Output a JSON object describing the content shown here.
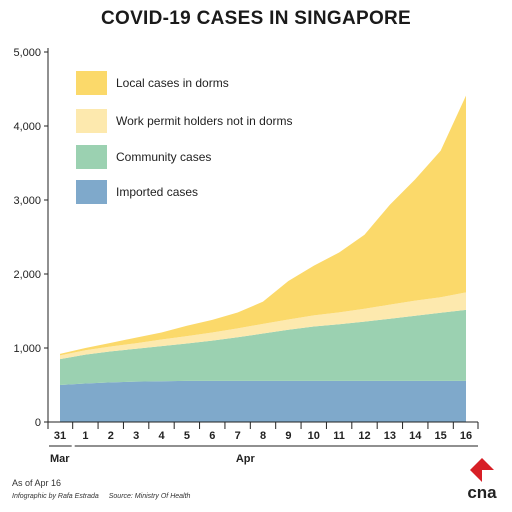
{
  "chart_data": {
    "type": "area",
    "title": "COVID-19 CASES IN SINGAPORE",
    "xlabel": "",
    "ylabel": "",
    "x": [
      "31",
      "1",
      "2",
      "3",
      "4",
      "5",
      "6",
      "7",
      "8",
      "9",
      "10",
      "11",
      "12",
      "13",
      "14",
      "15",
      "16"
    ],
    "month_labels": [
      {
        "label": "Mar",
        "from_index": 0,
        "to_index": 0
      },
      {
        "label": "Apr",
        "from_index": 1,
        "to_index": 16
      }
    ],
    "ylim": [
      0,
      5000
    ],
    "yticks": [
      0,
      1000,
      2000,
      3000,
      4000,
      5000
    ],
    "ytick_labels": [
      "0",
      "1,000",
      "2,000",
      "3,000",
      "4,000",
      "5,000"
    ],
    "stacked": true,
    "grid": false,
    "legend_position": "top-left",
    "series": [
      {
        "name": "Imported cases",
        "color": "#7fa9cb",
        "values": [
          500,
          520,
          535,
          545,
          550,
          555,
          555,
          555,
          556,
          556,
          556,
          556,
          556,
          556,
          556,
          556,
          556
        ]
      },
      {
        "name": "Community cases",
        "color": "#9bd1b1",
        "values": [
          350,
          390,
          420,
          445,
          475,
          505,
          545,
          590,
          640,
          690,
          735,
          765,
          800,
          840,
          880,
          920,
          960
        ]
      },
      {
        "name": "Work permit holders not in dorms",
        "color": "#fde9ae",
        "values": [
          50,
          60,
          65,
          75,
          90,
          100,
          110,
          120,
          130,
          140,
          150,
          160,
          175,
          190,
          205,
          210,
          235
        ]
      },
      {
        "name": "Local cases in dorms",
        "color": "#fbd96a",
        "values": [
          20,
          30,
          50,
          75,
          95,
          140,
          170,
          215,
          300,
          520,
          670,
          810,
          1000,
          1350,
          1640,
          1980,
          2660
        ]
      }
    ]
  },
  "footer": {
    "as_of": "As of Apr 16",
    "infographic": "Infographic by Rafa Estrada",
    "source": "Source: Ministry Of Health"
  },
  "logo": {
    "text": "cna",
    "color": "#d71f26"
  }
}
